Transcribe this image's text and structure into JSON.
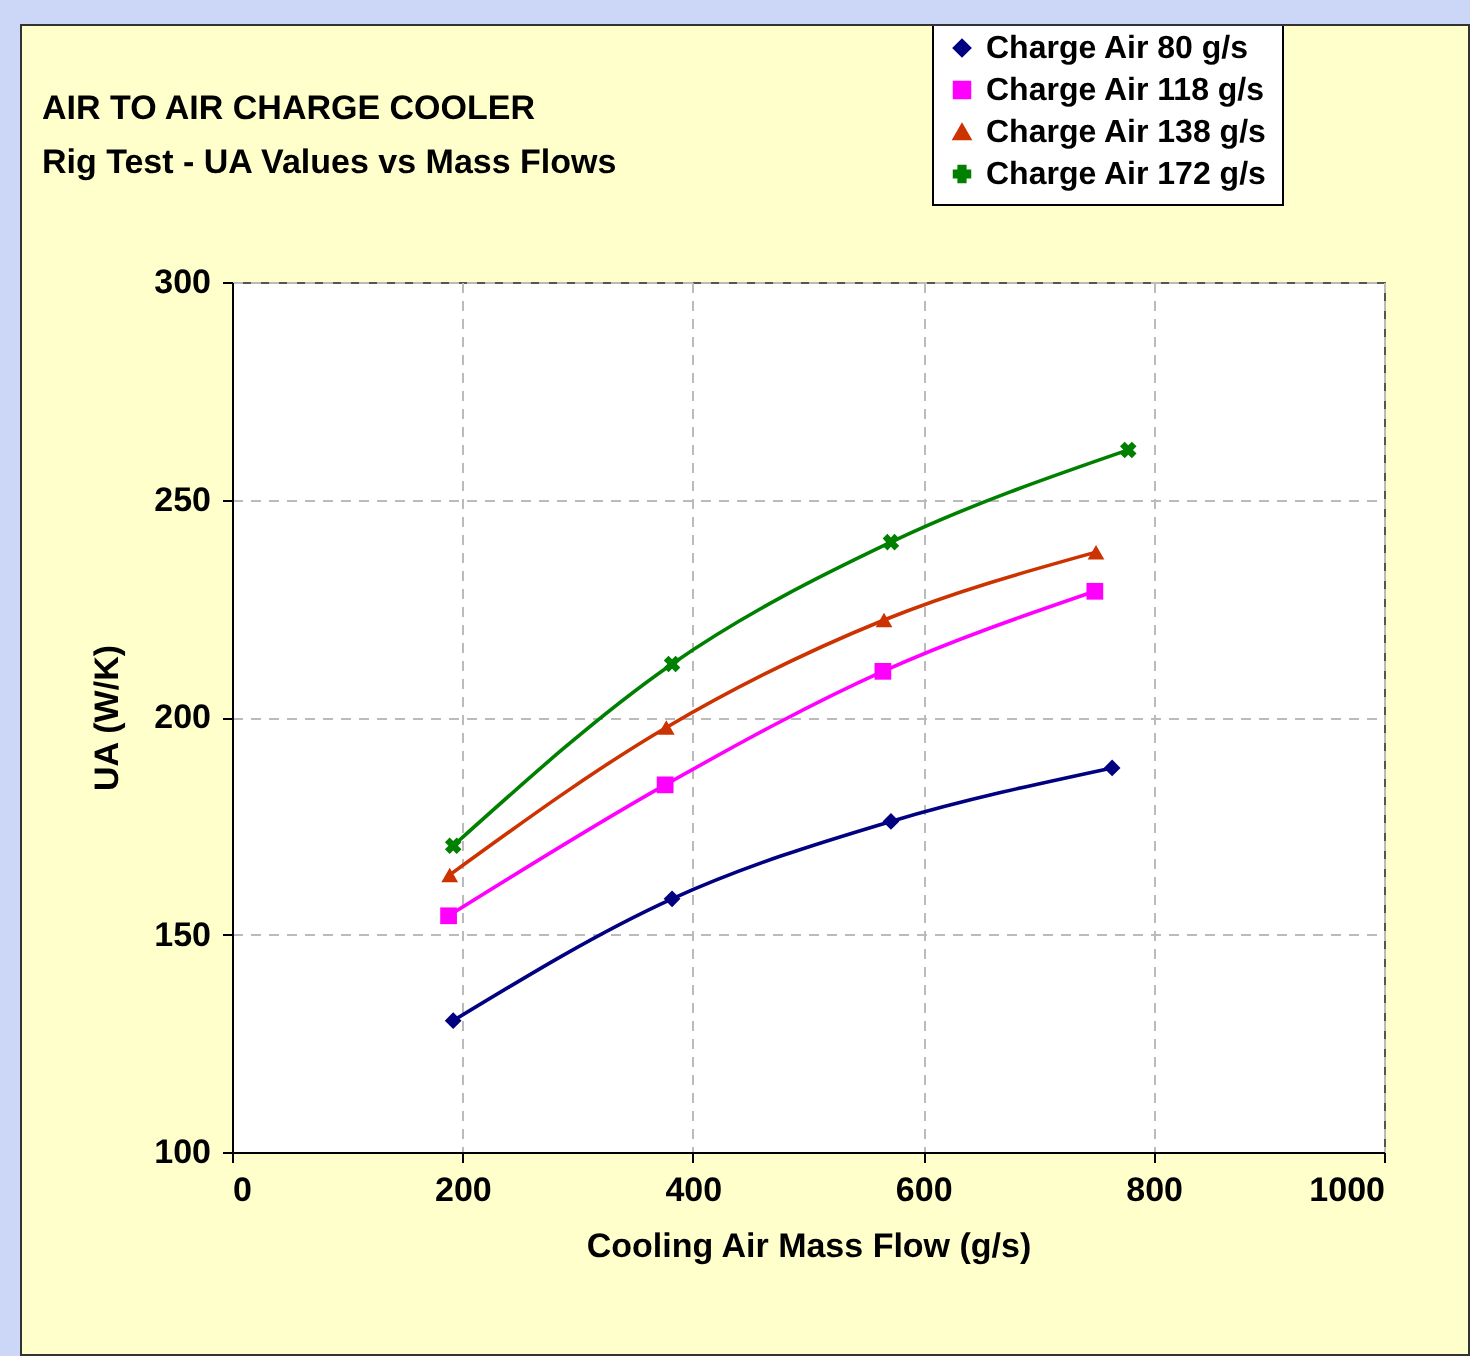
{
  "chart_data": {
    "type": "line",
    "title": "AIR TO AIR CHARGE COOLER",
    "subtitle": "Rig Test - UA Values vs Mass Flows",
    "xlabel": "Cooling Air Mass Flow (g/s)",
    "ylabel": "UA (W/K)",
    "xlim": [
      0,
      1000
    ],
    "xticks": [
      0,
      200,
      400,
      600,
      800,
      1000
    ],
    "ylim": [
      100,
      300
    ],
    "yticks": [
      100,
      150,
      200,
      250,
      300
    ],
    "grid": true,
    "legend": "top right",
    "line_style": "solid",
    "series": [
      {
        "name": "Charge Air 80 g/s",
        "color": "#000080",
        "marker": "diamond",
        "x": [
          192,
          382,
          572,
          764
        ],
        "values": [
          130.2,
          158.2,
          176,
          188.3
        ]
      },
      {
        "name": "Charge Air 118 g/s",
        "color": "#ff00ff",
        "marker": "square",
        "x": [
          188,
          376,
          565,
          749
        ],
        "values": [
          154.3,
          184.4,
          210.5,
          228.9
        ]
      },
      {
        "name": "Charge Air 138 g/s",
        "color": "#cc3300",
        "marker": "triangle",
        "x": [
          189,
          377,
          566,
          750
        ],
        "values": [
          163.7,
          197.6,
          222.3,
          237.9
        ]
      },
      {
        "name": "Charge Air 172 g/s",
        "color": "#008000",
        "marker": "cross",
        "x": [
          192,
          382,
          572,
          778
        ],
        "values": [
          170.4,
          212.2,
          240.2,
          261.4
        ]
      }
    ]
  }
}
